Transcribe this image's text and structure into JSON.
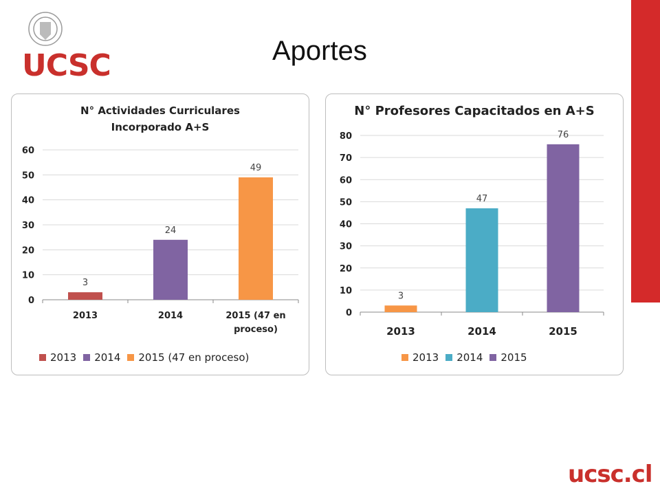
{
  "slide": {
    "title": "Aportes",
    "logo_text": "UCSC",
    "footer_text": "ucsc.cl",
    "accent_color": "#d42a2a",
    "brand_color": "#c9302c"
  },
  "chart_data": [
    {
      "type": "bar",
      "title": "N° Actividades Curriculares Incorporado A+S",
      "title_lines": [
        "N° Actividades Curriculares",
        "Incorporado A+S"
      ],
      "categories": [
        "2013",
        "2014",
        "2015 (47 en proceso)"
      ],
      "category_lines": [
        [
          "2013"
        ],
        [
          "2014"
        ],
        [
          "2015 (47 en",
          "proceso)"
        ]
      ],
      "values": [
        3,
        24,
        49
      ],
      "colors": [
        "#c0504d",
        "#8064a2",
        "#f79646"
      ],
      "data_labels": [
        "3",
        "24",
        "49"
      ],
      "yticks": [
        "0",
        "10",
        "20",
        "30",
        "40",
        "50",
        "60"
      ],
      "ylim": [
        0,
        60
      ],
      "xlabel": "",
      "ylabel": "",
      "grid": true,
      "legend": [
        "2013",
        "2014",
        "2015 (47 en proceso)"
      ],
      "legend_position": "bottom"
    },
    {
      "type": "bar",
      "title": "N° Profesores Capacitados en A+S",
      "title_lines": [
        "N° Profesores Capacitados en A+S"
      ],
      "categories": [
        "2013",
        "2014",
        "2015"
      ],
      "category_lines": [
        [
          "2013"
        ],
        [
          "2014"
        ],
        [
          "2015"
        ]
      ],
      "values": [
        3,
        47,
        76
      ],
      "colors": [
        "#f79646",
        "#4bacc6",
        "#8064a2"
      ],
      "data_labels": [
        "3",
        "47",
        "76"
      ],
      "yticks": [
        "0",
        "10",
        "20",
        "30",
        "40",
        "50",
        "60",
        "70",
        "80"
      ],
      "ylim": [
        0,
        80
      ],
      "xlabel": "",
      "ylabel": "",
      "grid": true,
      "legend": [
        "2013",
        "2014",
        "2015"
      ],
      "legend_position": "bottom"
    }
  ]
}
